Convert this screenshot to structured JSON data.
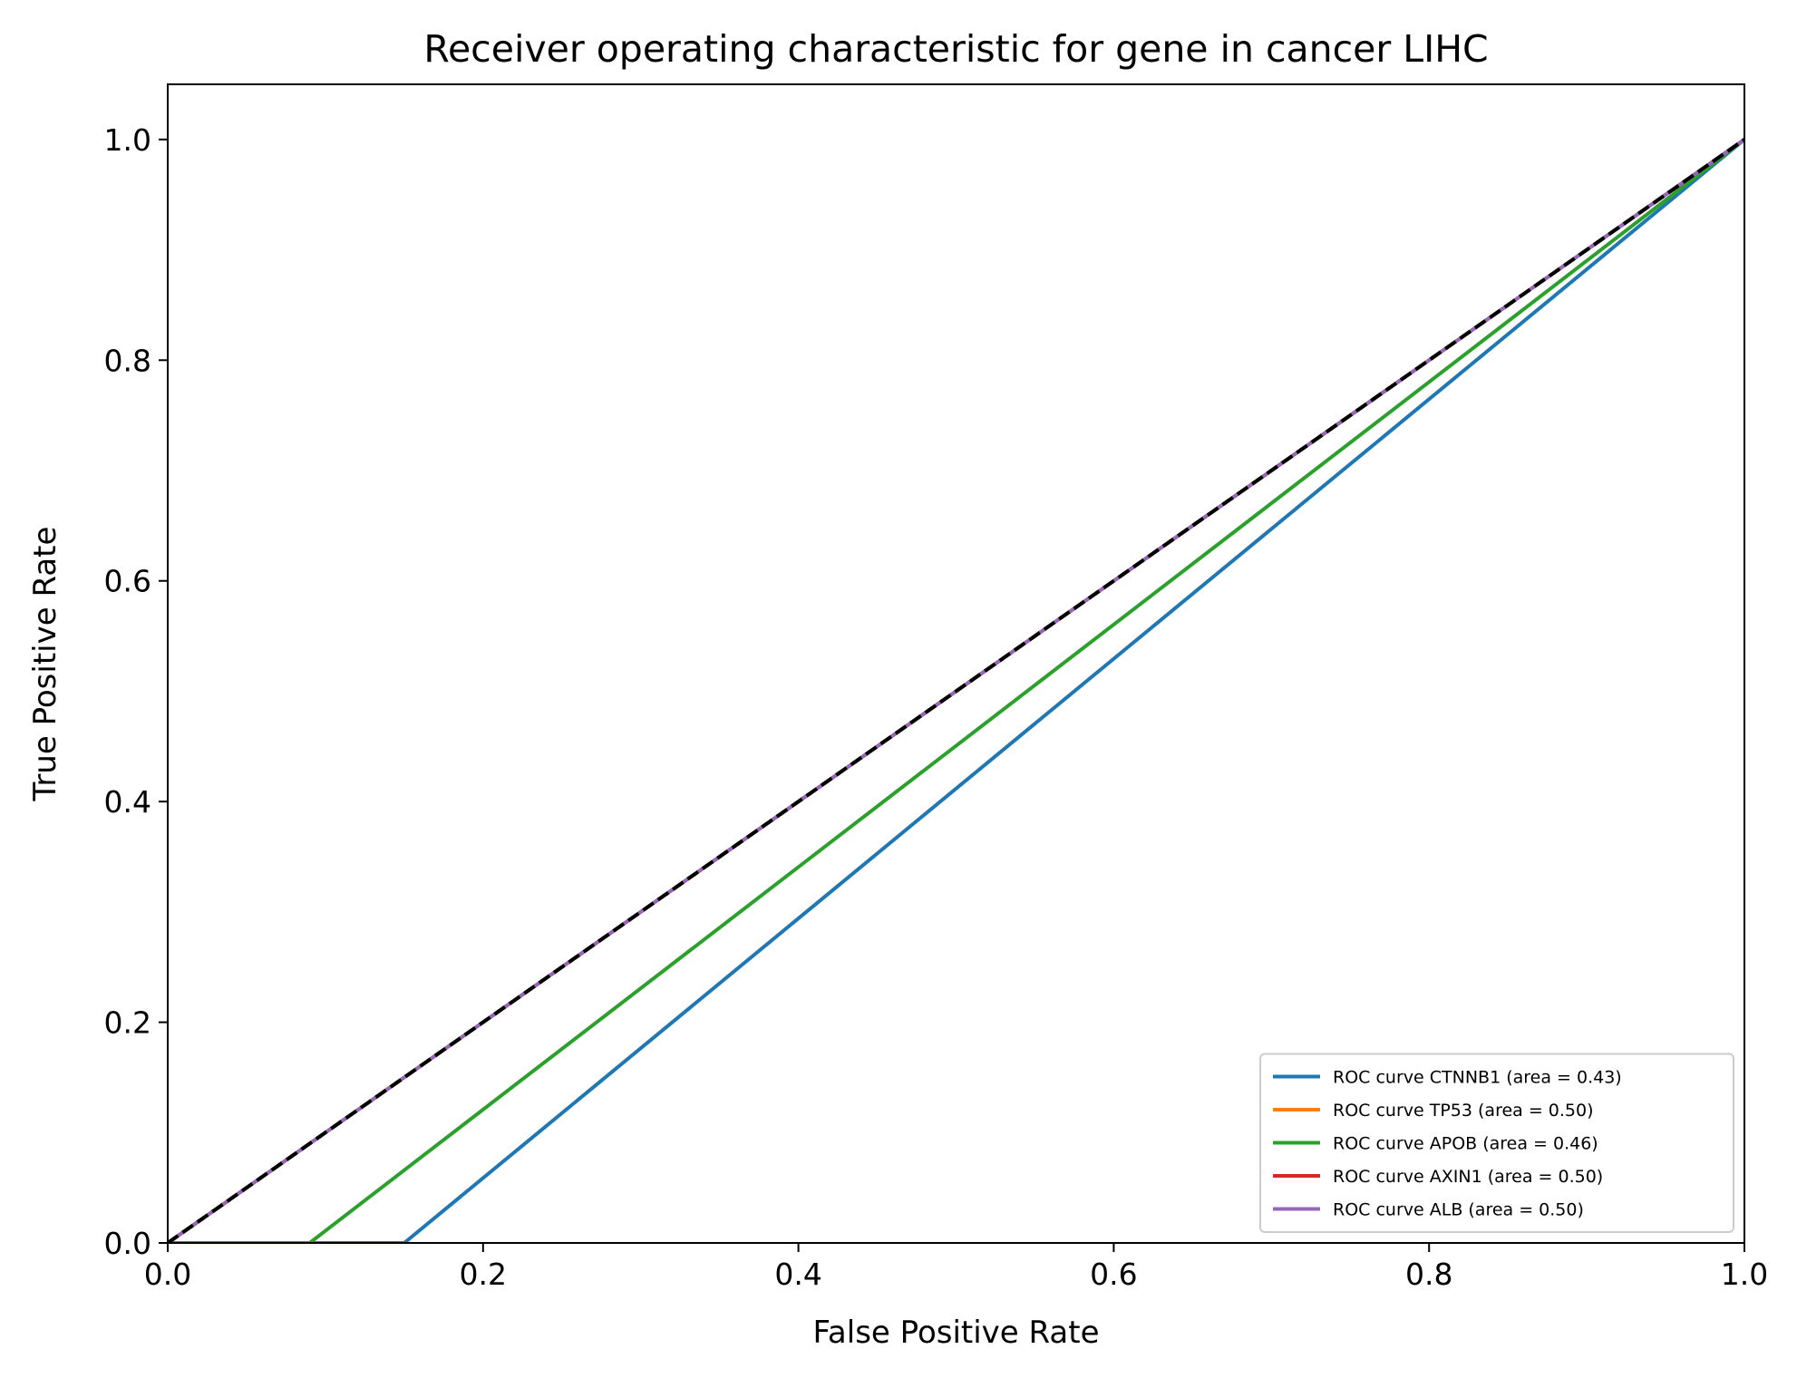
{
  "chart_data": {
    "type": "line",
    "title": "Receiver operating characteristic for gene in cancer LIHC",
    "xlabel": "False Positive Rate",
    "ylabel": "True Positive Rate",
    "xlim": [
      0.0,
      1.0
    ],
    "ylim": [
      0.0,
      1.05
    ],
    "xticks": [
      "0.0",
      "0.2",
      "0.4",
      "0.6",
      "0.8",
      "1.0"
    ],
    "yticks": [
      "0.0",
      "0.2",
      "0.4",
      "0.6",
      "0.8",
      "1.0"
    ],
    "grid": false,
    "legend_position": "bottom-right",
    "series": [
      {
        "name": "ROC curve CTNNB1 (area = 0.43)",
        "color": "#1f77b4",
        "points": [
          [
            0.0,
            0.0
          ],
          [
            0.15,
            0.0
          ],
          [
            1.0,
            1.0
          ]
        ]
      },
      {
        "name": "ROC curve TP53 (area = 0.50)",
        "color": "#ff7f0e",
        "points": [
          [
            0.0,
            0.0
          ],
          [
            1.0,
            1.0
          ]
        ]
      },
      {
        "name": "ROC curve APOB (area = 0.46)",
        "color": "#2ca02c",
        "points": [
          [
            0.0,
            0.0
          ],
          [
            0.09,
            0.0
          ],
          [
            1.0,
            1.0
          ]
        ]
      },
      {
        "name": "ROC curve AXIN1 (area = 0.50)",
        "color": "#d62728",
        "points": [
          [
            0.0,
            0.0
          ],
          [
            1.0,
            1.0
          ]
        ]
      },
      {
        "name": "ROC curve ALB (area = 0.50)",
        "color": "#9467bd",
        "points": [
          [
            0.0,
            0.0
          ],
          [
            1.0,
            1.0
          ]
        ]
      }
    ],
    "reference_line": {
      "style": "dashed",
      "color": "#000000",
      "points": [
        [
          0.0,
          0.0
        ],
        [
          1.0,
          1.0
        ]
      ]
    }
  }
}
